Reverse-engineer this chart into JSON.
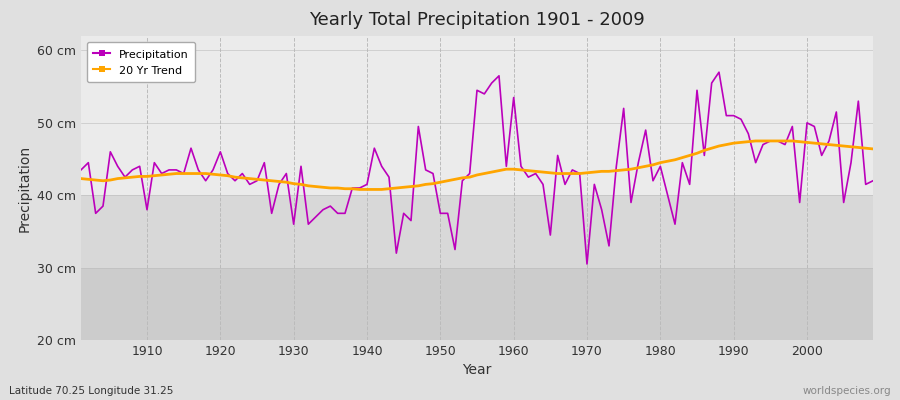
{
  "title": "Yearly Total Precipitation 1901 - 2009",
  "xlabel": "Year",
  "ylabel": "Precipitation",
  "subtitle": "Latitude 70.25 Longitude 31.25",
  "watermark": "worldspecies.org",
  "precip_color": "#bb00bb",
  "trend_color": "#ffa500",
  "bg_outer": "#e0e0e0",
  "bg_inner": "#ebebeb",
  "bg_band_dark": "#d8d8d8",
  "ylim": [
    20,
    62
  ],
  "yticks": [
    20,
    30,
    40,
    50,
    60
  ],
  "ytick_labels": [
    "20 cm",
    "30 cm",
    "40 cm",
    "50 cm",
    "60 cm"
  ],
  "years": [
    1901,
    1902,
    1903,
    1904,
    1905,
    1906,
    1907,
    1908,
    1909,
    1910,
    1911,
    1912,
    1913,
    1914,
    1915,
    1916,
    1917,
    1918,
    1919,
    1920,
    1921,
    1922,
    1923,
    1924,
    1925,
    1926,
    1927,
    1928,
    1929,
    1930,
    1931,
    1932,
    1933,
    1934,
    1935,
    1936,
    1937,
    1938,
    1939,
    1940,
    1941,
    1942,
    1943,
    1944,
    1945,
    1946,
    1947,
    1948,
    1949,
    1950,
    1951,
    1952,
    1953,
    1954,
    1955,
    1956,
    1957,
    1958,
    1959,
    1960,
    1961,
    1962,
    1963,
    1964,
    1965,
    1966,
    1967,
    1968,
    1969,
    1970,
    1971,
    1972,
    1973,
    1974,
    1975,
    1976,
    1977,
    1978,
    1979,
    1980,
    1981,
    1982,
    1983,
    1984,
    1985,
    1986,
    1987,
    1988,
    1989,
    1990,
    1991,
    1992,
    1993,
    1994,
    1995,
    1996,
    1997,
    1998,
    1999,
    2000,
    2001,
    2002,
    2003,
    2004,
    2005,
    2006,
    2007,
    2008,
    2009
  ],
  "precip": [
    43.5,
    44.5,
    37.5,
    38.5,
    46.0,
    44.0,
    42.5,
    43.5,
    44.0,
    38.0,
    44.5,
    43.0,
    43.5,
    43.5,
    43.0,
    46.5,
    43.5,
    42.0,
    43.5,
    46.0,
    43.0,
    42.0,
    43.0,
    41.5,
    42.0,
    44.5,
    37.5,
    41.5,
    43.0,
    36.0,
    44.0,
    36.0,
    37.0,
    38.0,
    38.5,
    37.5,
    37.5,
    41.0,
    41.0,
    41.5,
    46.5,
    44.0,
    42.5,
    32.0,
    37.5,
    36.5,
    49.5,
    43.5,
    43.0,
    37.5,
    37.5,
    32.5,
    42.0,
    43.0,
    54.5,
    54.0,
    55.5,
    56.5,
    44.0,
    53.5,
    44.0,
    42.5,
    43.0,
    41.5,
    34.5,
    45.5,
    41.5,
    43.5,
    43.0,
    30.5,
    41.5,
    38.0,
    33.0,
    44.0,
    52.0,
    39.0,
    44.5,
    49.0,
    42.0,
    44.0,
    40.0,
    36.0,
    44.5,
    41.5,
    54.5,
    45.5,
    55.5,
    57.0,
    51.0,
    51.0,
    50.5,
    48.5,
    44.5,
    47.0,
    47.5,
    47.5,
    47.0,
    49.5,
    39.0,
    50.0,
    49.5,
    45.5,
    47.5,
    51.5,
    39.0,
    44.5,
    53.0,
    41.5,
    42.0
  ],
  "trend": [
    42.3,
    42.2,
    42.1,
    42.0,
    42.1,
    42.3,
    42.4,
    42.5,
    42.6,
    42.6,
    42.7,
    42.8,
    42.9,
    43.0,
    43.0,
    43.0,
    43.0,
    43.0,
    42.9,
    42.8,
    42.7,
    42.5,
    42.4,
    42.3,
    42.2,
    42.1,
    42.0,
    41.9,
    41.8,
    41.6,
    41.5,
    41.3,
    41.2,
    41.1,
    41.0,
    41.0,
    40.9,
    40.9,
    40.8,
    40.8,
    40.8,
    40.8,
    40.9,
    41.0,
    41.1,
    41.2,
    41.3,
    41.5,
    41.6,
    41.8,
    42.0,
    42.2,
    42.4,
    42.5,
    42.8,
    43.0,
    43.2,
    43.4,
    43.6,
    43.6,
    43.5,
    43.4,
    43.3,
    43.2,
    43.1,
    43.0,
    43.0,
    43.0,
    43.0,
    43.1,
    43.2,
    43.3,
    43.3,
    43.4,
    43.5,
    43.6,
    43.8,
    44.0,
    44.2,
    44.5,
    44.7,
    44.9,
    45.2,
    45.5,
    45.8,
    46.2,
    46.5,
    46.8,
    47.0,
    47.2,
    47.3,
    47.4,
    47.5,
    47.5,
    47.5,
    47.5,
    47.5,
    47.5,
    47.4,
    47.3,
    47.2,
    47.1,
    47.0,
    46.9,
    46.8,
    46.7,
    46.6,
    46.5,
    46.4
  ]
}
